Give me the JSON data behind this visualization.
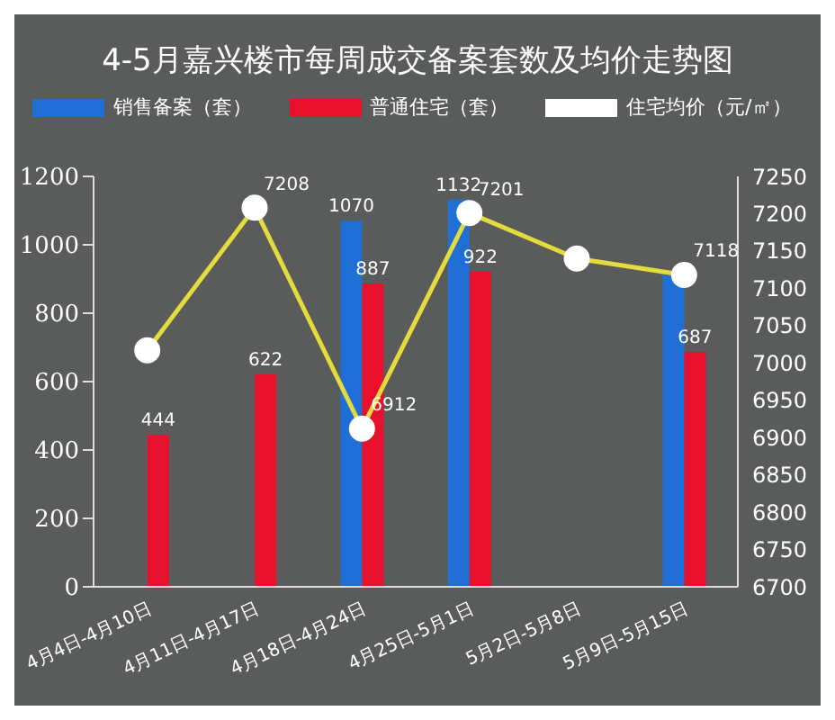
{
  "chart_data": {
    "type": "bar",
    "title": "4-5月嘉兴楼市每周成交备案套数及均价走势图",
    "categories": [
      "4月4日-4月10日",
      "4月11日-4月17日",
      "4月18日-4月24日",
      "4月25日-5月1日",
      "5月2日-5月8日",
      "5月9日-5月15日"
    ],
    "series": [
      {
        "name": "销售备案（套）",
        "color": "#1f6fd6",
        "values": [
          null,
          null,
          1070,
          1132,
          null,
          912
        ],
        "value_labels": [
          null,
          null,
          "1070",
          "1132",
          null,
          null
        ]
      },
      {
        "name": "普通住宅（套）",
        "color": "#e8112d",
        "values": [
          444,
          622,
          887,
          922,
          null,
          687
        ],
        "value_labels": [
          "444",
          "622",
          "887",
          "922",
          null,
          "687"
        ]
      },
      {
        "name": "住宅均价（元/㎡）",
        "type": "line",
        "axis": "y2",
        "color": "#e3dc3c",
        "values": [
          7017,
          7208,
          6912,
          7201,
          7140,
          7118
        ],
        "value_labels": [
          null,
          "7208",
          "6912",
          "7201",
          null,
          "7118"
        ]
      }
    ],
    "ylim": [
      0,
      1200
    ],
    "yticks": [
      0,
      200,
      400,
      600,
      800,
      1000,
      1200
    ],
    "y2lim": [
      6700,
      7250
    ],
    "y2ticks": [
      6700,
      6750,
      6800,
      6850,
      6900,
      6950,
      7000,
      7050,
      7100,
      7150,
      7200,
      7250
    ],
    "legend": "top",
    "grid": false,
    "marker": "circle"
  }
}
